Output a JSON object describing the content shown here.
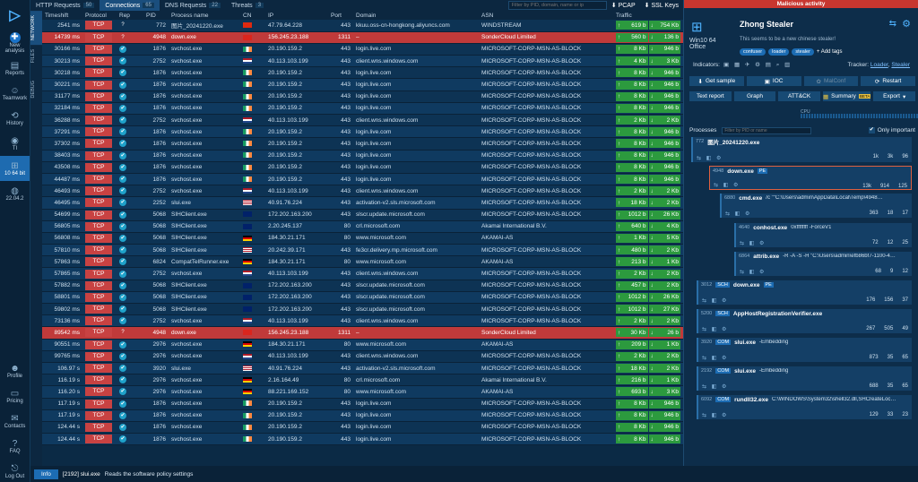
{
  "nav": [
    {
      "icon": "arrows",
      "label": "New analysis"
    },
    {
      "icon": "report",
      "label": "Reports"
    },
    {
      "icon": "teamwork",
      "label": "Teamwork"
    },
    {
      "icon": "history",
      "label": "History"
    },
    {
      "icon": "ti",
      "label": "TI"
    },
    {
      "icon": "windows",
      "label": "10 64 bit"
    },
    {
      "icon": "ubuntu",
      "label": "22.04.2"
    },
    {
      "icon": "profile",
      "label": "Profile"
    },
    {
      "icon": "pricing",
      "label": "Pricing"
    },
    {
      "icon": "contacts",
      "label": "Contacts"
    },
    {
      "icon": "faq",
      "label": "FAQ"
    },
    {
      "icon": "logout",
      "label": "Log Out"
    }
  ],
  "vtabs": [
    "NETWORK",
    "FILES",
    "DEBUG"
  ],
  "tabs": [
    {
      "label": "HTTP Requests",
      "count": "50"
    },
    {
      "label": "Connections",
      "count": "65"
    },
    {
      "label": "DNS Requests",
      "count": "22"
    },
    {
      "label": "Threats",
      "count": "3"
    }
  ],
  "tab_filter_placeholder": "Filter by PID, domain, name or ip",
  "pcap": "PCAP",
  "ssl": "SSL Keys",
  "cols": [
    "Timeshift",
    "Protocol",
    "Rep",
    "PID",
    "Process name",
    "CN",
    "IP",
    "Port",
    "Domain",
    "ASN",
    "Traffic"
  ],
  "rows": [
    [
      "2541 ms",
      "TCP",
      "?",
      "772",
      "图片_20241220.exe",
      "cn",
      "47.79.64.228",
      "443",
      "kkuu.oss-cn-hongkong.aliyuncs.com",
      "WINDSTREAM",
      "619 b",
      "754 Kb",
      0
    ],
    [
      "14739 ms",
      "TCP",
      "?",
      "4948",
      "down.exe",
      "vn",
      "156.245.23.188",
      "1311",
      "–",
      "SonderCloud Limited",
      "560 b",
      "136 b",
      1
    ],
    [
      "30166 ms",
      "TCP",
      "✔",
      "1876",
      "svchost.exe",
      "ie",
      "20.190.159.2",
      "443",
      "login.live.com",
      "MICROSOFT-CORP-MSN-AS-BLOCK",
      "8 Kb",
      "946 b",
      0
    ],
    [
      "30213 ms",
      "TCP",
      "✔",
      "2752",
      "svchost.exe",
      "nl",
      "40.113.103.199",
      "443",
      "client.wns.windows.com",
      "MICROSOFT-CORP-MSN-AS-BLOCK",
      "4 Kb",
      "3 Kb",
      0
    ],
    [
      "30218 ms",
      "TCP",
      "✔",
      "1876",
      "svchost.exe",
      "ie",
      "20.190.159.2",
      "443",
      "login.live.com",
      "MICROSOFT-CORP-MSN-AS-BLOCK",
      "8 Kb",
      "946 b",
      0
    ],
    [
      "30221 ms",
      "TCP",
      "✔",
      "1876",
      "svchost.exe",
      "ie",
      "20.190.159.2",
      "443",
      "login.live.com",
      "MICROSOFT-CORP-MSN-AS-BLOCK",
      "8 Kb",
      "946 b",
      0
    ],
    [
      "31177 ms",
      "TCP",
      "✔",
      "1876",
      "svchost.exe",
      "ie",
      "20.190.159.2",
      "443",
      "login.live.com",
      "MICROSOFT-CORP-MSN-AS-BLOCK",
      "8 Kb",
      "946 b",
      0
    ],
    [
      "32184 ms",
      "TCP",
      "✔",
      "1876",
      "svchost.exe",
      "ie",
      "20.190.159.2",
      "443",
      "login.live.com",
      "MICROSOFT-CORP-MSN-AS-BLOCK",
      "8 Kb",
      "946 b",
      0
    ],
    [
      "36288 ms",
      "TCP",
      "✔",
      "2752",
      "svchost.exe",
      "nl",
      "40.113.103.199",
      "443",
      "client.wns.windows.com",
      "MICROSOFT-CORP-MSN-AS-BLOCK",
      "2 Kb",
      "2 Kb",
      0
    ],
    [
      "37291 ms",
      "TCP",
      "✔",
      "1876",
      "svchost.exe",
      "ie",
      "20.190.159.2",
      "443",
      "login.live.com",
      "MICROSOFT-CORP-MSN-AS-BLOCK",
      "8 Kb",
      "946 b",
      0
    ],
    [
      "37302 ms",
      "TCP",
      "✔",
      "1876",
      "svchost.exe",
      "ie",
      "20.190.159.2",
      "443",
      "login.live.com",
      "MICROSOFT-CORP-MSN-AS-BLOCK",
      "8 Kb",
      "946 b",
      0
    ],
    [
      "38403 ms",
      "TCP",
      "✔",
      "1876",
      "svchost.exe",
      "ie",
      "20.190.159.2",
      "443",
      "login.live.com",
      "MICROSOFT-CORP-MSN-AS-BLOCK",
      "8 Kb",
      "946 b",
      0
    ],
    [
      "43508 ms",
      "TCP",
      "✔",
      "1876",
      "svchost.exe",
      "ie",
      "20.190.159.2",
      "443",
      "login.live.com",
      "MICROSOFT-CORP-MSN-AS-BLOCK",
      "8 Kb",
      "946 b",
      0
    ],
    [
      "44487 ms",
      "TCP",
      "✔",
      "1876",
      "svchost.exe",
      "ie",
      "20.190.159.2",
      "443",
      "login.live.com",
      "MICROSOFT-CORP-MSN-AS-BLOCK",
      "8 Kb",
      "946 b",
      0
    ],
    [
      "46493 ms",
      "TCP",
      "✔",
      "2752",
      "svchost.exe",
      "nl",
      "40.113.103.199",
      "443",
      "client.wns.windows.com",
      "MICROSOFT-CORP-MSN-AS-BLOCK",
      "2 Kb",
      "2 Kb",
      0
    ],
    [
      "46495 ms",
      "TCP",
      "✔",
      "2252",
      "slui.exe",
      "us",
      "40.91.76.224",
      "443",
      "activation-v2.sls.microsoft.com",
      "MICROSOFT-CORP-MSN-AS-BLOCK",
      "18 Kb",
      "2 Kb",
      0
    ],
    [
      "54699 ms",
      "TCP",
      "✔",
      "5068",
      "SIHClient.exe",
      "gb",
      "172.202.163.200",
      "443",
      "slscr.update.microsoft.com",
      "MICROSOFT-CORP-MSN-AS-BLOCK",
      "1012 b",
      "26 Kb",
      0
    ],
    [
      "56805 ms",
      "TCP",
      "✔",
      "5068",
      "SIHClient.exe",
      "gb",
      "2.20.245.137",
      "80",
      "crl.microsoft.com",
      "Akamai International B.V.",
      "640 b",
      "4 Kb",
      0
    ],
    [
      "56808 ms",
      "TCP",
      "✔",
      "5068",
      "SIHClient.exe",
      "de",
      "184.30.21.171",
      "80",
      "www.microsoft.com",
      "AKAMAI-AS",
      "1 Kb",
      "5 Kb",
      0
    ],
    [
      "57810 ms",
      "TCP",
      "✔",
      "5068",
      "SIHClient.exe",
      "us",
      "20.242.39.171",
      "443",
      "fe3cr.delivery.mp.microsoft.com",
      "MICROSOFT-CORP-MSN-AS-BLOCK",
      "480 b",
      "2 Kb",
      0
    ],
    [
      "57863 ms",
      "TCP",
      "✔",
      "6824",
      "CompatTelRunner.exe",
      "de",
      "184.30.21.171",
      "80",
      "www.microsoft.com",
      "AKAMAI-AS",
      "213 b",
      "1 Kb",
      0
    ],
    [
      "57865 ms",
      "TCP",
      "✔",
      "2752",
      "svchost.exe",
      "nl",
      "40.113.103.199",
      "443",
      "client.wns.windows.com",
      "MICROSOFT-CORP-MSN-AS-BLOCK",
      "2 Kb",
      "2 Kb",
      0
    ],
    [
      "57882 ms",
      "TCP",
      "✔",
      "5068",
      "SIHClient.exe",
      "gb",
      "172.202.163.200",
      "443",
      "slscr.update.microsoft.com",
      "MICROSOFT-CORP-MSN-AS-BLOCK",
      "457 b",
      "2 Kb",
      0
    ],
    [
      "58801 ms",
      "TCP",
      "✔",
      "5068",
      "SIHClient.exe",
      "gb",
      "172.202.163.200",
      "443",
      "slscr.update.microsoft.com",
      "MICROSOFT-CORP-MSN-AS-BLOCK",
      "1012 b",
      "26 Kb",
      0
    ],
    [
      "59802 ms",
      "TCP",
      "✔",
      "5068",
      "SIHClient.exe",
      "gb",
      "172.202.163.200",
      "443",
      "slscr.update.microsoft.com",
      "MICROSOFT-CORP-MSN-AS-BLOCK",
      "1012 b",
      "27 Kb",
      0
    ],
    [
      "73136 ms",
      "TCP",
      "✔",
      "2752",
      "svchost.exe",
      "nl",
      "40.113.103.199",
      "443",
      "client.wns.windows.com",
      "MICROSOFT-CORP-MSN-AS-BLOCK",
      "2 Kb",
      "2 Kb",
      0
    ],
    [
      "89542 ms",
      "TCP",
      "?",
      "4948",
      "down.exe",
      "vn",
      "156.245.23.188",
      "1311",
      "–",
      "SonderCloud Limited",
      "30 Kb",
      "26 b",
      1
    ],
    [
      "90551 ms",
      "TCP",
      "✔",
      "2976",
      "svchost.exe",
      "de",
      "184.30.21.171",
      "80",
      "www.microsoft.com",
      "AKAMAI-AS",
      "209 b",
      "1 Kb",
      0
    ],
    [
      "99765 ms",
      "TCP",
      "✔",
      "2976",
      "svchost.exe",
      "nl",
      "40.113.103.199",
      "443",
      "client.wns.windows.com",
      "MICROSOFT-CORP-MSN-AS-BLOCK",
      "2 Kb",
      "2 Kb",
      0
    ],
    [
      "106.97 s",
      "TCP",
      "✔",
      "3920",
      "slui.exe",
      "us",
      "40.91.76.224",
      "443",
      "activation-v2.sls.microsoft.com",
      "MICROSOFT-CORP-MSN-AS-BLOCK",
      "18 Kb",
      "2 Kb",
      0
    ],
    [
      "116.19 s",
      "TCP",
      "✔",
      "2976",
      "svchost.exe",
      "de",
      "2.16.164.49",
      "80",
      "crl.microsoft.com",
      "Akamai International B.V.",
      "216 b",
      "1 Kb",
      0
    ],
    [
      "116.20 s",
      "TCP",
      "✔",
      "2976",
      "svchost.exe",
      "de",
      "88.221.169.152",
      "80",
      "www.microsoft.com",
      "AKAMAI-AS",
      "693 b",
      "3 Kb",
      0
    ],
    [
      "117.19 s",
      "TCP",
      "✔",
      "1876",
      "svchost.exe",
      "ie",
      "20.190.159.2",
      "443",
      "login.live.com",
      "MICROSOFT-CORP-MSN-AS-BLOCK",
      "8 Kb",
      "946 b",
      0
    ],
    [
      "117.19 s",
      "TCP",
      "✔",
      "1876",
      "svchost.exe",
      "ie",
      "20.190.159.2",
      "443",
      "login.live.com",
      "MICROSOFT-CORP-MSN-AS-BLOCK",
      "8 Kb",
      "946 b",
      0
    ],
    [
      "124.44 s",
      "TCP",
      "✔",
      "1876",
      "svchost.exe",
      "ie",
      "20.190.159.2",
      "443",
      "login.live.com",
      "MICROSOFT-CORP-MSN-AS-BLOCK",
      "8 Kb",
      "946 b",
      0
    ],
    [
      "124.44 s",
      "TCP",
      "✔",
      "1876",
      "svchost.exe",
      "ie",
      "20.190.159.2",
      "443",
      "login.live.com",
      "MICROSOFT-CORP-MSN-AS-BLOCK",
      "8 Kb",
      "946 b",
      0
    ]
  ],
  "panel": {
    "malicious": "Malicious activity",
    "os_name": "Win10 64",
    "os_sub": "Office",
    "title": "Zhong Stealer",
    "desc": "This seems to be a new chinese stealer!",
    "tags": [
      "confuser",
      "loader",
      "stealer"
    ],
    "add_tags": "+ Add tags",
    "indicators": "Indicators:",
    "tracker": "Tracker:",
    "tracker_links": [
      "Loader",
      "Stealer"
    ],
    "buttons1": [
      "Get sample",
      "IOC",
      "MalConf",
      "Restart"
    ],
    "buttons2": [
      "Text report",
      "Graph",
      "ATT&CK",
      "Summary",
      "Export"
    ],
    "beta": "BETA",
    "cpu": "CPU",
    "ram": "RAM",
    "processes_label": "Processes",
    "proc_filter": "Filter by PID or name",
    "only_important": "Only important",
    "procs": [
      {
        "pid": "772",
        "badge": "",
        "name": "图片_20241220.exe",
        "cmd": "",
        "s": [
          "1k",
          "3k",
          "96"
        ]
      },
      {
        "pid": "4948",
        "badge": "",
        "name": "down.exe",
        "cmd": "PE",
        "s": [
          "13k",
          "914",
          "125"
        ]
      },
      {
        "pid": "6880",
        "badge": "",
        "name": "cmd.exe",
        "cmd": "/c \"\"C:\\Users\\admin\\AppData\\Local\\Temp\\4948…",
        "s": [
          "363",
          "18",
          "17"
        ]
      },
      {
        "pid": "4640",
        "badge": "",
        "name": "conhost.exe",
        "cmd": "0xffffffff -ForceV1",
        "s": [
          "72",
          "12",
          "25"
        ]
      },
      {
        "pid": "6864",
        "badge": "",
        "name": "attrib.exe",
        "cmd": "-R -A -S -H \"C:\\Users\\admin\\efb86bf7-1100-4…",
        "s": [
          "68",
          "9",
          "12"
        ]
      },
      {
        "pid": "3012",
        "badge": "SCH",
        "name": "down.exe",
        "cmd": "PE",
        "s": [
          "176",
          "156",
          "37"
        ]
      },
      {
        "pid": "5200",
        "badge": "SCH",
        "name": "AppHostRegistrationVerifier.exe",
        "cmd": "",
        "s": [
          "267",
          "505",
          "49"
        ]
      },
      {
        "pid": "3920",
        "badge": "COM",
        "name": "slui.exe",
        "cmd": "-Embedding",
        "s": [
          "873",
          "35",
          "65"
        ]
      },
      {
        "pid": "2192",
        "badge": "COM",
        "name": "slui.exe",
        "cmd": "-Embedding",
        "s": [
          "688",
          "35",
          "65"
        ]
      },
      {
        "pid": "6092",
        "badge": "COM",
        "name": "rundll32.exe",
        "cmd": "C:\\WINDOWS\\System32\\shell32.dll,SHCreateLoc…",
        "s": [
          "129",
          "33",
          "23"
        ]
      }
    ]
  },
  "status": {
    "info": "Info",
    "pid": "[2192] slui.exe",
    "text": "Reads the software policy settings"
  }
}
